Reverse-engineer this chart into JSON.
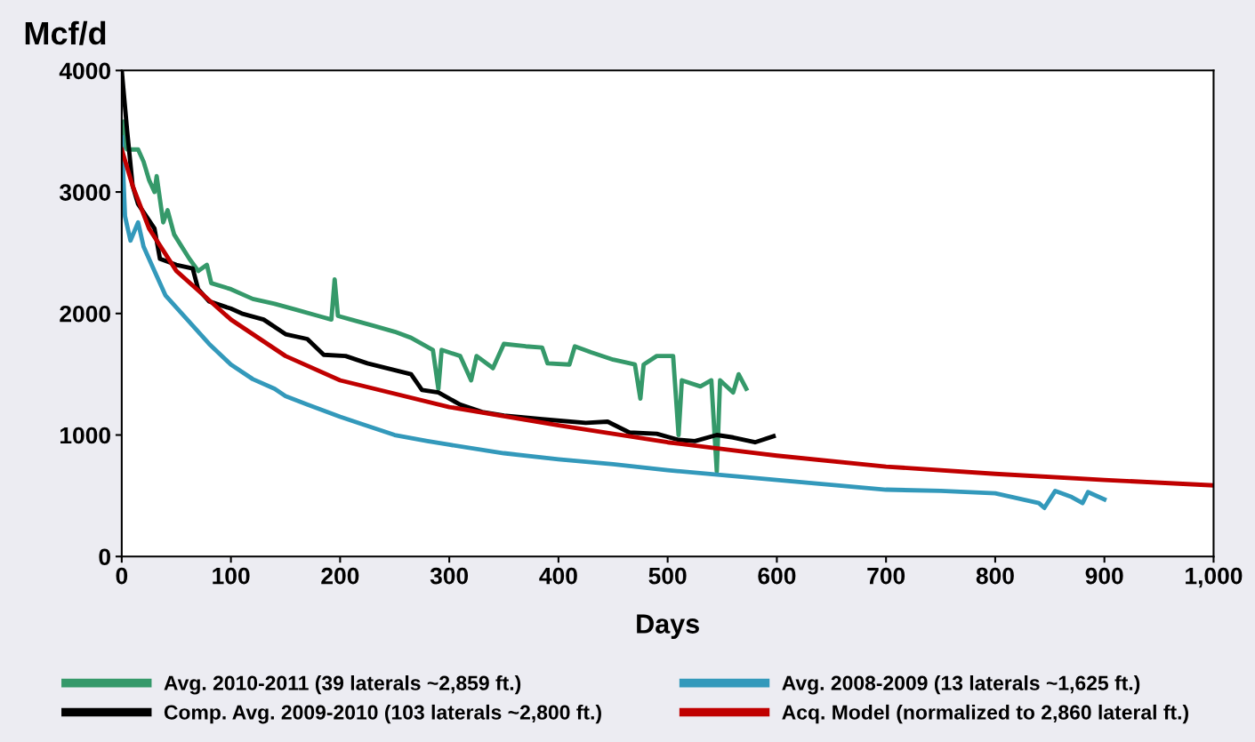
{
  "chart_data": {
    "type": "line",
    "xlabel": "Days",
    "ylabel": "Mcf/d",
    "xlim": [
      0,
      1000
    ],
    "ylim": [
      0,
      4000
    ],
    "xticks": [
      0,
      100,
      200,
      300,
      400,
      500,
      600,
      700,
      800,
      900,
      {
        "value": 1000,
        "label": "1,000"
      }
    ],
    "yticks": [
      0,
      1000,
      2000,
      3000,
      4000
    ],
    "grid": false,
    "legend": "bottom",
    "marker": "none",
    "line_style": "solid",
    "series": [
      {
        "name": "Avg. 2010-2011 (39 laterals ~2,859 ft.)",
        "color": "#35996a",
        "x": [
          0,
          2,
          5,
          15,
          20,
          25,
          30,
          32,
          38,
          42,
          48,
          55,
          62,
          70,
          78,
          82,
          100,
          120,
          140,
          160,
          180,
          192,
          195,
          198,
          210,
          230,
          250,
          265,
          285,
          290,
          293,
          310,
          320,
          325,
          340,
          350,
          370,
          385,
          390,
          410,
          415,
          430,
          450,
          470,
          475,
          478,
          490,
          505,
          510,
          513,
          530,
          540,
          545,
          548,
          560,
          565,
          572
        ],
        "values": [
          3200,
          3580,
          3350,
          3350,
          3250,
          3100,
          3000,
          3130,
          2750,
          2850,
          2650,
          2550,
          2450,
          2350,
          2400,
          2250,
          2200,
          2120,
          2080,
          2030,
          1980,
          1950,
          2280,
          1980,
          1950,
          1900,
          1850,
          1800,
          1700,
          1380,
          1700,
          1650,
          1450,
          1650,
          1550,
          1750,
          1730,
          1720,
          1590,
          1580,
          1730,
          1680,
          1620,
          1580,
          1300,
          1580,
          1650,
          1650,
          1000,
          1450,
          1400,
          1450,
          700,
          1450,
          1350,
          1500,
          1380
        ]
      },
      {
        "name": "Comp. Avg. 2009-2010 (103 laterals ~2,800 ft.)",
        "color": "#000000",
        "x": [
          0,
          5,
          10,
          15,
          30,
          35,
          50,
          65,
          70,
          80,
          100,
          110,
          130,
          150,
          170,
          185,
          205,
          225,
          265,
          275,
          290,
          310,
          330,
          350,
          385,
          425,
          445,
          465,
          490,
          510,
          525,
          545,
          560,
          580,
          597
        ],
        "values": [
          4000,
          3500,
          3050,
          2900,
          2700,
          2450,
          2400,
          2370,
          2200,
          2100,
          2040,
          2000,
          1950,
          1830,
          1790,
          1660,
          1650,
          1590,
          1500,
          1370,
          1350,
          1250,
          1190,
          1160,
          1130,
          1100,
          1110,
          1020,
          1010,
          960,
          950,
          1000,
          980,
          940,
          990
        ]
      },
      {
        "name": "Avg. 2008-2009 (13 laterals ~1,625 ft.)",
        "color": "#3399bb",
        "x": [
          0,
          3,
          8,
          15,
          20,
          30,
          40,
          60,
          80,
          100,
          120,
          140,
          150,
          170,
          200,
          220,
          250,
          280,
          300,
          350,
          400,
          450,
          500,
          550,
          600,
          650,
          700,
          750,
          800,
          840,
          845,
          855,
          870,
          880,
          885,
          900
        ],
        "values": [
          3450,
          2800,
          2600,
          2750,
          2550,
          2350,
          2150,
          1950,
          1750,
          1580,
          1460,
          1380,
          1320,
          1250,
          1150,
          1090,
          1000,
          950,
          920,
          850,
          800,
          760,
          710,
          670,
          630,
          590,
          550,
          540,
          520,
          440,
          400,
          540,
          490,
          440,
          530,
          470
        ]
      },
      {
        "name": "Acq. Model (normalized to 2,860 lateral ft.)",
        "color": "#c00000",
        "x": [
          0,
          10,
          25,
          50,
          75,
          100,
          150,
          200,
          300,
          400,
          500,
          600,
          700,
          800,
          900,
          1000
        ],
        "values": [
          3350,
          3050,
          2700,
          2350,
          2150,
          1950,
          1650,
          1450,
          1230,
          1080,
          940,
          830,
          740,
          680,
          630,
          585
        ]
      }
    ]
  }
}
